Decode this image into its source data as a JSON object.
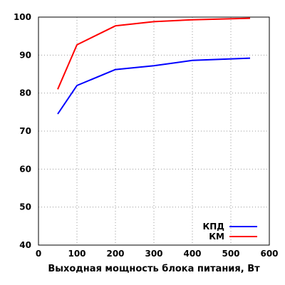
{
  "chart_data": {
    "type": "line",
    "xlabel": "Выходная мощность блока питания, Вт",
    "ylabel": "",
    "title": "",
    "xlim": [
      0,
      600
    ],
    "ylim": [
      40,
      100
    ],
    "xticks": [
      0,
      100,
      200,
      300,
      400,
      500,
      600
    ],
    "yticks": [
      40,
      50,
      60,
      70,
      80,
      90,
      100
    ],
    "grid": true,
    "legend_position": "bottom-right",
    "series": [
      {
        "name": "КПД",
        "color": "#0000ff",
        "x": [
          50,
          100,
          200,
          300,
          400,
          550
        ],
        "y": [
          74.5,
          82,
          86.2,
          87.2,
          88.6,
          89.2
        ]
      },
      {
        "name": "КМ",
        "color": "#ff0000",
        "x": [
          50,
          100,
          200,
          300,
          400,
          550
        ],
        "y": [
          81,
          92.7,
          97.7,
          98.8,
          99.3,
          99.7
        ]
      }
    ]
  }
}
